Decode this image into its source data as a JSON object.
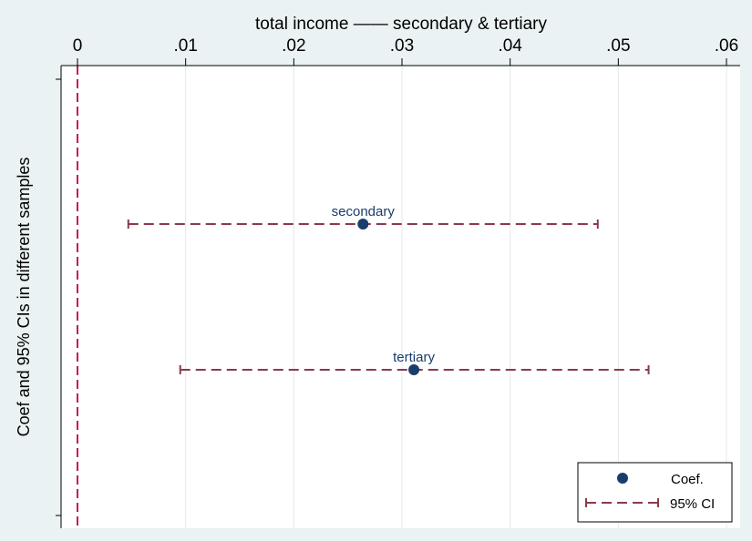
{
  "chart_data": {
    "type": "scatter",
    "title": "total income —— secondary & tertiary",
    "xlabel": "",
    "ylabel": "Coef and 95% CIs in different samples",
    "xlim": [
      0,
      0.061
    ],
    "x_ticks": [
      0,
      0.01,
      0.02,
      0.03,
      0.04,
      0.05,
      0.06
    ],
    "x_tick_labels": [
      "0",
      ".01",
      ".02",
      ".03",
      ".04",
      ".05",
      ".06"
    ],
    "x_axis_position": "top",
    "grid": true,
    "reference_line": {
      "x": 0,
      "style": "dashed",
      "color": "#c8194b"
    },
    "points": [
      {
        "label": "secondary",
        "coef": 0.0264,
        "ci_low": 0.0047,
        "ci_high": 0.0481
      },
      {
        "label": "tertiary",
        "coef": 0.0311,
        "ci_low": 0.0095,
        "ci_high": 0.0528
      }
    ],
    "legend": {
      "position": "bottom-right",
      "entries": [
        {
          "label": "Coef.",
          "marker": "circle"
        },
        {
          "label": "95% CI",
          "marker": "dashed-capped-line"
        }
      ]
    },
    "colors": {
      "point": "#1a3d6b",
      "ci": "#8b3a4a",
      "reference": "#c8194b",
      "grid": "#e4e8ea",
      "background": "#eaf2f3",
      "plot_background": "#ffffff"
    }
  }
}
